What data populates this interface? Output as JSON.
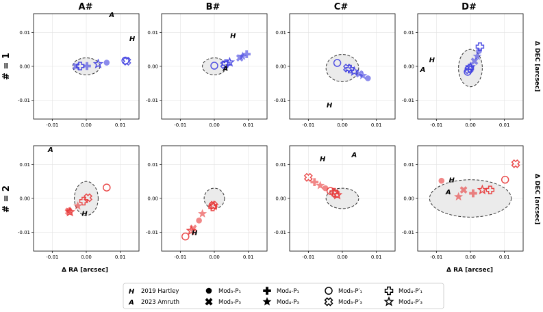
{
  "figure": {
    "col_titles": [
      "A#",
      "B#",
      "C#",
      "D#"
    ],
    "row_titles": [
      "# = 1",
      "# = 2"
    ],
    "row_right_labels": [
      "Δ DEC [arcsec]",
      "Δ DEC [arcsec]"
    ],
    "x_axis_label": "Δ RA [arcsec]",
    "ticks": [
      "-0.01",
      "0.00",
      "0.01"
    ]
  },
  "colors": {
    "blue": "#3f3fe0",
    "red": "#e83838"
  },
  "legend": {
    "entries": [
      {
        "symbol": "H",
        "label": "2019 Hartley"
      },
      {
        "symbol": "A",
        "label": "2023 Amruth"
      },
      {
        "symbol": "circle-filled",
        "label": "Mod₃-P₁"
      },
      {
        "symbol": "x-filled",
        "label": "Mod₃-P₃"
      },
      {
        "symbol": "plus-filled",
        "label": "Mod₄-P₁"
      },
      {
        "symbol": "star-filled",
        "label": "Mod₄-P₃"
      },
      {
        "symbol": "circle-open",
        "label": "Mod₃-P′₁"
      },
      {
        "symbol": "x-open",
        "label": "Mod₃-P′₃"
      },
      {
        "symbol": "plus-open",
        "label": "Mod₄-P′₁"
      },
      {
        "symbol": "star-open",
        "label": "Mod₄-P′₃"
      }
    ]
  },
  "chart_data": [
    {
      "type": "scatter",
      "title": "A#",
      "row": "# = 1",
      "color": "blue",
      "xlim": [
        -0.0155,
        0.0155
      ],
      "ylim": [
        -0.0155,
        0.0155
      ],
      "ellipse": {
        "cx": 0.0,
        "cy": 0.0,
        "rx": 0.004,
        "ry": 0.0025
      },
      "annotations": [
        {
          "text": "A",
          "x": 0.0075,
          "y": 0.0153
        },
        {
          "text": "H",
          "x": 0.0135,
          "y": 0.0083
        }
      ],
      "points": [
        {
          "marker": "circle-filled",
          "x": 0.006,
          "y": 0.0011
        },
        {
          "marker": "circle-open",
          "x": 0.0115,
          "y": 0.0017
        },
        {
          "marker": "x-open",
          "x": 0.0119,
          "y": 0.0015
        },
        {
          "marker": "star-open",
          "x": 0.0035,
          "y": 0.0007
        },
        {
          "marker": "plus-open",
          "x": -0.0018,
          "y": 0.0001
        },
        {
          "marker": "x-filled",
          "x": -0.003,
          "y": 0.0
        },
        {
          "marker": "plus-filled",
          "x": 0.0002,
          "y": 0.0001
        }
      ]
    },
    {
      "type": "scatter",
      "title": "B#",
      "row": "# = 1",
      "color": "blue",
      "xlim": [
        -0.0155,
        0.0155
      ],
      "ylim": [
        -0.0155,
        0.0155
      ],
      "ellipse": {
        "cx": 0.0,
        "cy": 0.0,
        "rx": 0.0035,
        "ry": 0.0025
      },
      "annotations": [
        {
          "text": "H",
          "x": 0.0055,
          "y": 0.0092
        },
        {
          "text": "A",
          "x": 0.0033,
          "y": -0.0005
        }
      ],
      "points": [
        {
          "marker": "circle-open",
          "x": 0.0,
          "y": 0.0002
        },
        {
          "marker": "x-open",
          "x": 0.003,
          "y": 0.0005
        },
        {
          "marker": "plus-open",
          "x": 0.0035,
          "y": 0.0008
        },
        {
          "marker": "star-open",
          "x": 0.0045,
          "y": 0.0012
        },
        {
          "marker": "x-filled",
          "x": 0.0075,
          "y": 0.0025
        },
        {
          "marker": "star-filled",
          "x": 0.0083,
          "y": 0.003
        },
        {
          "marker": "plus-filled",
          "x": 0.0095,
          "y": 0.0036
        }
      ]
    },
    {
      "type": "scatter",
      "title": "C#",
      "row": "# = 1",
      "color": "blue",
      "xlim": [
        -0.0155,
        0.0155
      ],
      "ylim": [
        -0.0155,
        0.0155
      ],
      "ellipse": {
        "cx": 0.0,
        "cy": -0.0005,
        "rx": 0.0048,
        "ry": 0.004
      },
      "annotations": [
        {
          "text": "H",
          "x": -0.0038,
          "y": -0.0113
        }
      ],
      "points": [
        {
          "marker": "circle-open",
          "x": -0.0015,
          "y": 0.001
        },
        {
          "marker": "x-open",
          "x": 0.0015,
          "y": -0.0005
        },
        {
          "marker": "plus-open",
          "x": 0.0022,
          "y": -0.0008
        },
        {
          "marker": "star-open",
          "x": 0.0035,
          "y": -0.0015
        },
        {
          "marker": "x-filled",
          "x": 0.005,
          "y": -0.0022
        },
        {
          "marker": "star-filled",
          "x": 0.006,
          "y": -0.0027
        },
        {
          "marker": "circle-filled",
          "x": 0.0075,
          "y": -0.0035
        }
      ]
    },
    {
      "type": "scatter",
      "title": "D#",
      "row": "# = 1",
      "color": "blue",
      "xlim": [
        -0.0155,
        0.0155
      ],
      "ylim": [
        -0.0155,
        0.0155
      ],
      "ellipse": {
        "cx": 0.0,
        "cy": -0.0005,
        "rx": 0.0035,
        "ry": 0.0055
      },
      "annotations": [
        {
          "text": "H",
          "x": -0.0113,
          "y": 0.002
        },
        {
          "text": "A",
          "x": -0.014,
          "y": -0.0008
        }
      ],
      "points": [
        {
          "marker": "circle-open",
          "x": -0.0008,
          "y": -0.0016
        },
        {
          "marker": "x-open",
          "x": -0.0005,
          "y": -0.001
        },
        {
          "marker": "plus-open",
          "x": -0.0002,
          "y": -0.0005
        },
        {
          "marker": "star-open",
          "x": 0.0,
          "y": -0.0002
        },
        {
          "marker": "x-filled",
          "x": 0.0012,
          "y": 0.0015
        },
        {
          "marker": "star-filled",
          "x": 0.002,
          "y": 0.003
        },
        {
          "marker": "circle-filled",
          "x": 0.0025,
          "y": 0.0045
        },
        {
          "marker": "plus-open",
          "x": 0.0028,
          "y": 0.0058
        }
      ]
    },
    {
      "type": "scatter",
      "title": "A#",
      "row": "# = 2",
      "color": "red",
      "xlim": [
        -0.0155,
        0.0155
      ],
      "ylim": [
        -0.0155,
        0.0155
      ],
      "ellipse": {
        "cx": 0.0,
        "cy": 0.0,
        "rx": 0.0035,
        "ry": 0.005
      },
      "annotations": [
        {
          "text": "A",
          "x": -0.0105,
          "y": 0.0145
        },
        {
          "text": "H",
          "x": -0.0005,
          "y": -0.0043
        }
      ],
      "points": [
        {
          "marker": "circle-open",
          "x": 0.006,
          "y": 0.0032
        },
        {
          "marker": "x-open",
          "x": 0.0005,
          "y": 0.0002
        },
        {
          "marker": "plus-open",
          "x": -0.0008,
          "y": -0.0008
        },
        {
          "marker": "star-filled",
          "x": -0.0025,
          "y": -0.0022
        },
        {
          "marker": "circle-filled",
          "x": -0.005,
          "y": -0.0035
        },
        {
          "marker": "x-filled",
          "x": -0.0052,
          "y": -0.0038
        },
        {
          "marker": "star-open",
          "x": -0.0048,
          "y": -0.004
        }
      ]
    },
    {
      "type": "scatter",
      "title": "B#",
      "row": "# = 2",
      "color": "red",
      "xlim": [
        -0.0155,
        0.0155
      ],
      "ylim": [
        -0.0155,
        0.0155
      ],
      "ellipse": {
        "cx": 0.0,
        "cy": 0.0,
        "rx": 0.003,
        "ry": 0.003
      },
      "annotations": [
        {
          "text": "H",
          "x": -0.0058,
          "y": -0.01
        }
      ],
      "points": [
        {
          "marker": "x-open",
          "x": -0.0003,
          "y": -0.002
        },
        {
          "marker": "plus-open",
          "x": -0.0005,
          "y": -0.0025
        },
        {
          "marker": "star-open",
          "x": -0.0002,
          "y": -0.0022
        },
        {
          "marker": "star-filled",
          "x": -0.0035,
          "y": -0.0045
        },
        {
          "marker": "circle-filled",
          "x": -0.0045,
          "y": -0.0065
        },
        {
          "marker": "x-filled",
          "x": -0.0062,
          "y": -0.0088
        },
        {
          "marker": "star-open",
          "x": -0.0068,
          "y": -0.0095
        },
        {
          "marker": "circle-open",
          "x": -0.0085,
          "y": -0.0112
        }
      ]
    },
    {
      "type": "scatter",
      "title": "C#",
      "row": "# = 2",
      "color": "red",
      "xlim": [
        -0.0155,
        0.0155
      ],
      "ylim": [
        -0.0155,
        0.0155
      ],
      "ellipse": {
        "cx": 0.0,
        "cy": 0.0,
        "rx": 0.0048,
        "ry": 0.003
      },
      "annotations": [
        {
          "text": "H",
          "x": -0.0058,
          "y": 0.0118
        },
        {
          "text": "A",
          "x": 0.0035,
          "y": 0.013
        }
      ],
      "points": [
        {
          "marker": "x-open",
          "x": -0.01,
          "y": 0.0062
        },
        {
          "marker": "plus-filled",
          "x": -0.0082,
          "y": 0.0048
        },
        {
          "marker": "star-filled",
          "x": -0.0065,
          "y": 0.0038
        },
        {
          "marker": "circle-filled",
          "x": -0.005,
          "y": 0.003
        },
        {
          "marker": "circle-open",
          "x": -0.0035,
          "y": 0.0022
        },
        {
          "marker": "plus-open",
          "x": -0.0025,
          "y": 0.0018
        },
        {
          "marker": "x-open",
          "x": -0.002,
          "y": 0.0014
        },
        {
          "marker": "star-open",
          "x": -0.0015,
          "y": 0.001
        }
      ]
    },
    {
      "type": "scatter",
      "title": "D#",
      "row": "# = 2",
      "color": "red",
      "xlim": [
        -0.0155,
        0.0155
      ],
      "ylim": [
        -0.0155,
        0.0155
      ],
      "ellipse": {
        "cx": 0.0,
        "cy": 0.0,
        "rx": 0.012,
        "ry": 0.0055
      },
      "annotations": [
        {
          "text": "H",
          "x": -0.0055,
          "y": 0.0055
        },
        {
          "text": "A",
          "x": -0.0065,
          "y": 0.002
        }
      ],
      "points": [
        {
          "marker": "circle-filled",
          "x": -0.0085,
          "y": 0.0052
        },
        {
          "marker": "star-filled",
          "x": -0.0035,
          "y": 0.0005
        },
        {
          "marker": "x-filled",
          "x": -0.002,
          "y": 0.0025
        },
        {
          "marker": "plus-filled",
          "x": 0.0008,
          "y": 0.0015
        },
        {
          "marker": "star-open",
          "x": 0.0035,
          "y": 0.0025
        },
        {
          "marker": "plus-open",
          "x": 0.0058,
          "y": 0.0025
        },
        {
          "marker": "circle-open",
          "x": 0.0102,
          "y": 0.0055
        },
        {
          "marker": "x-open",
          "x": 0.0133,
          "y": 0.0102
        }
      ]
    }
  ]
}
